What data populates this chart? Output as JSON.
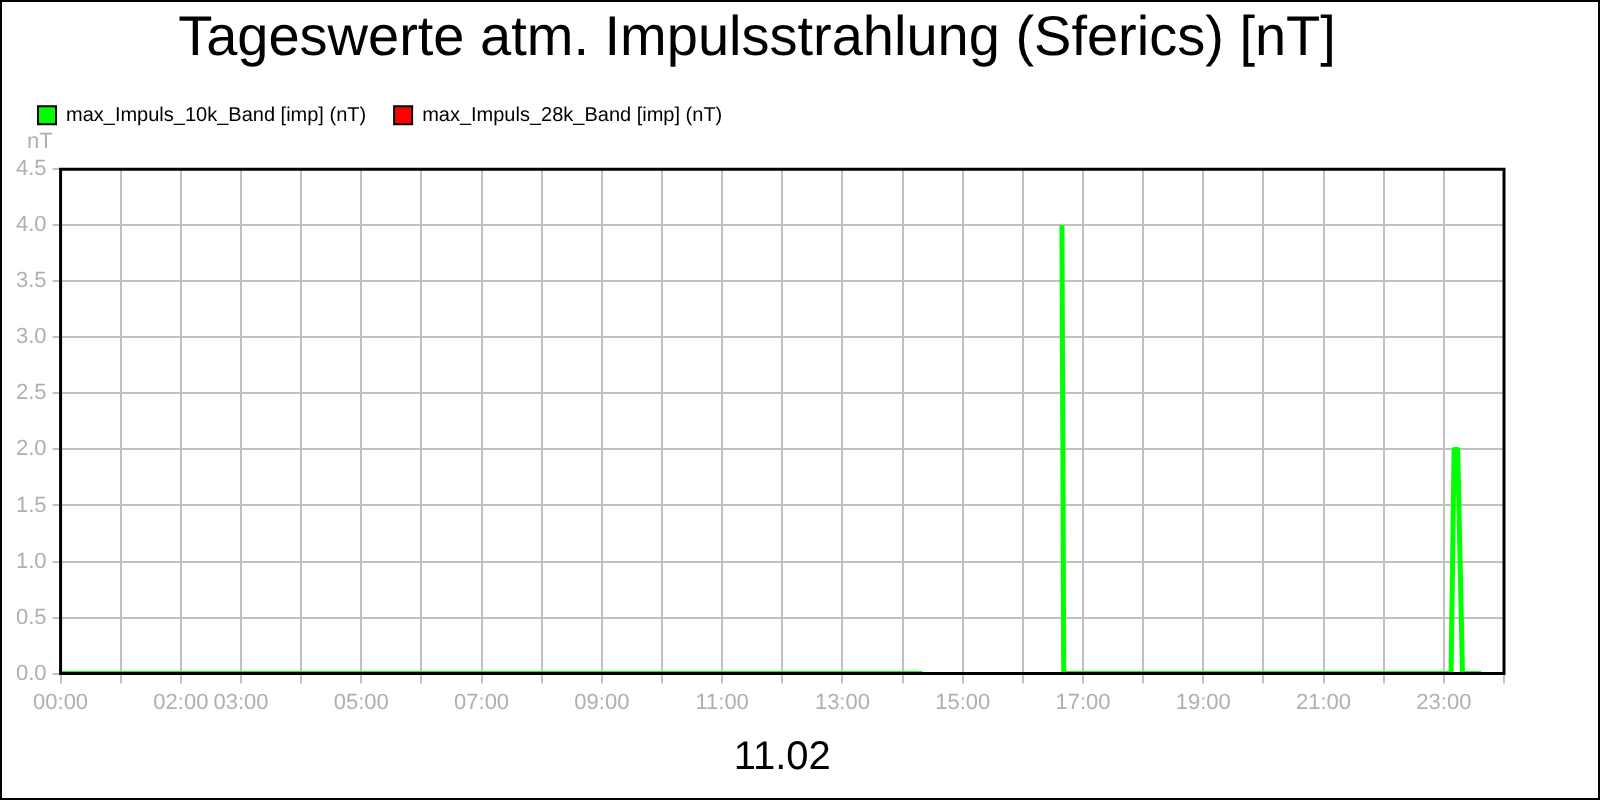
{
  "chart_data": {
    "type": "line",
    "title": "Tageswerte atm. Impulsstrahlung (Sferics) [nT]",
    "xlabel": "11.02",
    "ylabel": "nT",
    "series": [
      {
        "name": "max_Impuls_10k_Band [imp] (nT)",
        "color": "#00ff00",
        "x": [
          0,
          14.33,
          15.5,
          16.65,
          16.68,
          23.12,
          23.17,
          23.23,
          23.31,
          23.62
        ],
        "values": [
          0,
          0,
          null,
          4.0,
          0,
          0,
          2.0,
          2.0,
          0,
          0
        ]
      },
      {
        "name": "max_Impuls_28k_Band [imp] (nT)",
        "color": "#ff0000"
      }
    ],
    "xlim": [
      0,
      24
    ],
    "xticks": [
      {
        "value": 0,
        "label": "00:00"
      },
      {
        "value": 1,
        "label": null
      },
      {
        "value": 2,
        "label": "02:00"
      },
      {
        "value": 3,
        "label": "03:00"
      },
      {
        "value": 4,
        "label": null
      },
      {
        "value": 5,
        "label": "05:00"
      },
      {
        "value": 6,
        "label": null
      },
      {
        "value": 7,
        "label": "07:00"
      },
      {
        "value": 8,
        "label": null
      },
      {
        "value": 9,
        "label": "09:00"
      },
      {
        "value": 10,
        "label": null
      },
      {
        "value": 11,
        "label": "11:00"
      },
      {
        "value": 12,
        "label": null
      },
      {
        "value": 13,
        "label": "13:00"
      },
      {
        "value": 14,
        "label": null
      },
      {
        "value": 15,
        "label": "15:00"
      },
      {
        "value": 16,
        "label": null
      },
      {
        "value": 17,
        "label": "17:00"
      },
      {
        "value": 18,
        "label": null
      },
      {
        "value": 19,
        "label": "19:00"
      },
      {
        "value": 20,
        "label": null
      },
      {
        "value": 21,
        "label": "21:00"
      },
      {
        "value": 22,
        "label": null
      },
      {
        "value": 23,
        "label": "23:00"
      },
      {
        "value": 24,
        "label": null
      }
    ],
    "ylim": [
      0,
      4.5
    ],
    "yticks": [
      {
        "value": 0,
        "label": "0.0"
      },
      {
        "value": 0.5,
        "label": "0.5"
      },
      {
        "value": 1,
        "label": "1.0"
      },
      {
        "value": 1.5,
        "label": "1.5"
      },
      {
        "value": 2,
        "label": "2.0"
      },
      {
        "value": 2.5,
        "label": "2.5"
      },
      {
        "value": 3,
        "label": "3.0"
      },
      {
        "value": 3.5,
        "label": "3.5"
      },
      {
        "value": 4,
        "label": "4.0"
      },
      {
        "value": 4.5,
        "label": "4.5"
      }
    ],
    "grid": true,
    "legend": "top left",
    "marker": "none",
    "line_style": "solid"
  }
}
